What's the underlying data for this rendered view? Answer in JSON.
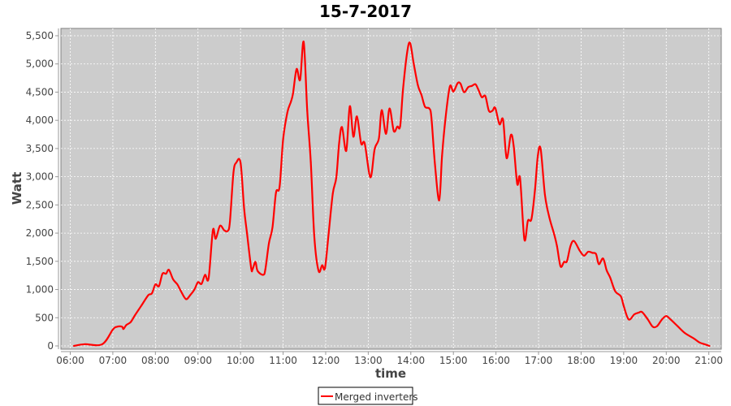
{
  "chart_data": {
    "type": "line",
    "title": "15-7-2017",
    "xlabel": "time",
    "ylabel": "Watt",
    "ylim": [
      0,
      5500
    ],
    "xlim": [
      "06:00",
      "21:00"
    ],
    "x_ticks": [
      "06:00",
      "07:00",
      "08:00",
      "09:00",
      "10:00",
      "11:00",
      "12:00",
      "13:00",
      "14:00",
      "15:00",
      "16:00",
      "17:00",
      "18:00",
      "19:00",
      "20:00",
      "21:00"
    ],
    "y_ticks": [
      0,
      500,
      1000,
      1500,
      2000,
      2500,
      3000,
      3500,
      4000,
      4500,
      5000,
      5500
    ],
    "y_tick_labels": [
      "0",
      "500",
      "1,000",
      "1,500",
      "2,000",
      "2,500",
      "3,000",
      "3,500",
      "4,000",
      "4,500",
      "5,000",
      "5,500"
    ],
    "grid": true,
    "legend": "bottom",
    "background": "#cccccc",
    "series": [
      {
        "name": "Merged inverters",
        "color": "#ff0000",
        "points": [
          [
            "06:05",
            0
          ],
          [
            "06:20",
            30
          ],
          [
            "06:45",
            30
          ],
          [
            "07:00",
            290
          ],
          [
            "07:06",
            340
          ],
          [
            "07:13",
            340
          ],
          [
            "07:15",
            300
          ],
          [
            "07:19",
            370
          ],
          [
            "07:25",
            420
          ],
          [
            "07:31",
            540
          ],
          [
            "07:40",
            710
          ],
          [
            "07:50",
            900
          ],
          [
            "07:55",
            930
          ],
          [
            "08:00",
            1090
          ],
          [
            "08:05",
            1060
          ],
          [
            "08:10",
            1280
          ],
          [
            "08:15",
            1280
          ],
          [
            "08:19",
            1350
          ],
          [
            "08:25",
            1180
          ],
          [
            "08:31",
            1090
          ],
          [
            "08:36",
            970
          ],
          [
            "08:43",
            830
          ],
          [
            "08:49",
            900
          ],
          [
            "08:55",
            1000
          ],
          [
            "09:00",
            1130
          ],
          [
            "09:05",
            1100
          ],
          [
            "09:10",
            1260
          ],
          [
            "09:15",
            1200
          ],
          [
            "09:21",
            2050
          ],
          [
            "09:25",
            1900
          ],
          [
            "09:31",
            2130
          ],
          [
            "09:37",
            2050
          ],
          [
            "09:42",
            2040
          ],
          [
            "09:45",
            2200
          ],
          [
            "09:50",
            3070
          ],
          [
            "09:54",
            3250
          ],
          [
            "10:00",
            3250
          ],
          [
            "10:05",
            2440
          ],
          [
            "10:09",
            2010
          ],
          [
            "10:15",
            1380
          ],
          [
            "10:17",
            1360
          ],
          [
            "10:21",
            1490
          ],
          [
            "10:24",
            1330
          ],
          [
            "10:32",
            1260
          ],
          [
            "10:35",
            1360
          ],
          [
            "10:40",
            1820
          ],
          [
            "10:45",
            2100
          ],
          [
            "10:50",
            2720
          ],
          [
            "10:55",
            2820
          ],
          [
            "11:00",
            3660
          ],
          [
            "11:06",
            4140
          ],
          [
            "11:11",
            4330
          ],
          [
            "11:14",
            4480
          ],
          [
            "11:19",
            4910
          ],
          [
            "11:24",
            4720
          ],
          [
            "11:29",
            5390
          ],
          [
            "11:34",
            4170
          ],
          [
            "11:39",
            3260
          ],
          [
            "11:44",
            1930
          ],
          [
            "11:50",
            1330
          ],
          [
            "11:55",
            1430
          ],
          [
            "11:59",
            1380
          ],
          [
            "12:04",
            1970
          ],
          [
            "12:10",
            2700
          ],
          [
            "12:15",
            2990
          ],
          [
            "12:19",
            3600
          ],
          [
            "12:23",
            3880
          ],
          [
            "12:29",
            3460
          ],
          [
            "12:34",
            4250
          ],
          [
            "12:39",
            3710
          ],
          [
            "12:44",
            4070
          ],
          [
            "12:50",
            3590
          ],
          [
            "12:55",
            3590
          ],
          [
            "13:03",
            2990
          ],
          [
            "13:09",
            3490
          ],
          [
            "13:15",
            3680
          ],
          [
            "13:19",
            4180
          ],
          [
            "13:25",
            3760
          ],
          [
            "13:30",
            4210
          ],
          [
            "13:36",
            3810
          ],
          [
            "13:41",
            3890
          ],
          [
            "13:45",
            3900
          ],
          [
            "13:49",
            4550
          ],
          [
            "13:55",
            5220
          ],
          [
            "13:59",
            5370
          ],
          [
            "14:04",
            5010
          ],
          [
            "14:10",
            4620
          ],
          [
            "14:15",
            4450
          ],
          [
            "14:20",
            4240
          ],
          [
            "14:26",
            4210
          ],
          [
            "14:29",
            4050
          ],
          [
            "14:34",
            3220
          ],
          [
            "14:40",
            2580
          ],
          [
            "14:44",
            3370
          ],
          [
            "14:49",
            4050
          ],
          [
            "14:55",
            4600
          ],
          [
            "15:00",
            4510
          ],
          [
            "15:06",
            4660
          ],
          [
            "15:10",
            4650
          ],
          [
            "15:15",
            4500
          ],
          [
            "15:21",
            4590
          ],
          [
            "15:26",
            4610
          ],
          [
            "15:31",
            4640
          ],
          [
            "15:35",
            4550
          ],
          [
            "15:40",
            4410
          ],
          [
            "15:45",
            4430
          ],
          [
            "15:50",
            4170
          ],
          [
            "15:55",
            4170
          ],
          [
            "15:59",
            4220
          ],
          [
            "16:05",
            3930
          ],
          [
            "16:10",
            4010
          ],
          [
            "16:15",
            3330
          ],
          [
            "16:21",
            3740
          ],
          [
            "16:25",
            3540
          ],
          [
            "16:30",
            2870
          ],
          [
            "16:34",
            2970
          ],
          [
            "16:40",
            1890
          ],
          [
            "16:45",
            2220
          ],
          [
            "16:50",
            2250
          ],
          [
            "16:55",
            2770
          ],
          [
            "16:59",
            3370
          ],
          [
            "17:03",
            3490
          ],
          [
            "17:09",
            2680
          ],
          [
            "17:15",
            2290
          ],
          [
            "17:22",
            1980
          ],
          [
            "17:26",
            1770
          ],
          [
            "17:31",
            1410
          ],
          [
            "17:36",
            1490
          ],
          [
            "17:40",
            1500
          ],
          [
            "17:45",
            1770
          ],
          [
            "17:50",
            1860
          ],
          [
            "17:58",
            1690
          ],
          [
            "18:04",
            1600
          ],
          [
            "18:10",
            1670
          ],
          [
            "18:16",
            1650
          ],
          [
            "18:21",
            1630
          ],
          [
            "18:25",
            1450
          ],
          [
            "18:31",
            1550
          ],
          [
            "18:36",
            1340
          ],
          [
            "18:41",
            1210
          ],
          [
            "18:48",
            970
          ],
          [
            "18:56",
            880
          ],
          [
            "19:00",
            710
          ],
          [
            "19:07",
            470
          ],
          [
            "19:15",
            560
          ],
          [
            "19:21",
            590
          ],
          [
            "19:26",
            600
          ],
          [
            "19:34",
            470
          ],
          [
            "19:41",
            340
          ],
          [
            "19:47",
            350
          ],
          [
            "19:54",
            470
          ],
          [
            "20:00",
            530
          ],
          [
            "20:06",
            470
          ],
          [
            "20:16",
            350
          ],
          [
            "20:26",
            230
          ],
          [
            "20:39",
            130
          ],
          [
            "20:47",
            60
          ],
          [
            "20:54",
            30
          ],
          [
            "21:01",
            0
          ]
        ]
      }
    ]
  }
}
